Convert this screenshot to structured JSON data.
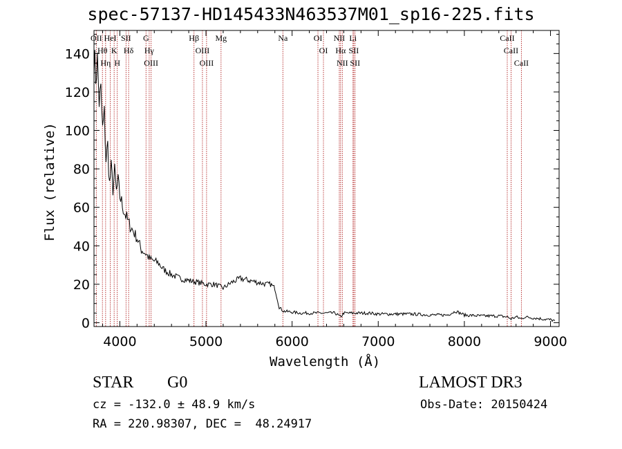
{
  "chart_data": {
    "type": "line",
    "title": "spec-57137-HD145433N463537M01_sp16-225.fits",
    "xlabel": "Wavelength (Å)",
    "ylabel": "Flux (relative)",
    "xlim": [
      3700,
      9100
    ],
    "ylim": [
      -2,
      152
    ],
    "xticks": [
      4000,
      5000,
      6000,
      7000,
      8000,
      9000
    ],
    "yticks": [
      0,
      20,
      40,
      60,
      80,
      100,
      120,
      140
    ],
    "grid": false,
    "series": [
      {
        "x": [
          3700,
          3720,
          3740,
          3760,
          3780,
          3800,
          3820,
          3840,
          3860,
          3880,
          3900,
          3920,
          3940,
          3960,
          3980,
          4000,
          4050,
          4100,
          4150,
          4200,
          4250,
          4300,
          4350,
          4400,
          4450,
          4500,
          4600,
          4700,
          4800,
          4900,
          5000,
          5100,
          5200,
          5300,
          5400,
          5500,
          5600,
          5700,
          5750,
          5800,
          5850,
          5900,
          6000,
          6100,
          6200,
          6300,
          6400,
          6500,
          6563,
          6600,
          6700,
          6800,
          6900,
          7000,
          7200,
          7400,
          7600,
          7800,
          7900,
          8000,
          8200,
          8400,
          8500,
          8542,
          8600,
          8662,
          8700,
          8800,
          8900,
          9000,
          9050
        ],
        "y": [
          140,
          128,
          136,
          115,
          120,
          100,
          108,
          85,
          92,
          72,
          80,
          70,
          78,
          68,
          73,
          66,
          58,
          52,
          48,
          44,
          38,
          36,
          33,
          32,
          31,
          28,
          25,
          23,
          22,
          21,
          20,
          20,
          18,
          21,
          23,
          22,
          21,
          20,
          20,
          18,
          8,
          6,
          5.5,
          5,
          5,
          5,
          5,
          5,
          3,
          5,
          5,
          5,
          5,
          4.5,
          4.5,
          4.5,
          4,
          4,
          6,
          4,
          3.5,
          3.5,
          3,
          2,
          3,
          2,
          3,
          2.5,
          2,
          1.5,
          1
        ]
      }
    ],
    "lines": [
      {
        "x": 3727,
        "labels": [
          "OII"
        ]
      },
      {
        "x": 3798,
        "labels": [
          "Hθ"
        ]
      },
      {
        "x": 3835,
        "labels": [
          "Hη"
        ]
      },
      {
        "x": 3889,
        "labels": [
          "HeI"
        ]
      },
      {
        "x": 3934,
        "labels": [
          "K"
        ]
      },
      {
        "x": 3970,
        "labels": [
          "H"
        ]
      },
      {
        "x": 4072,
        "labels": [
          "SII"
        ]
      },
      {
        "x": 4102,
        "labels": [
          "Hδ"
        ]
      },
      {
        "x": 4304,
        "labels": [
          "G"
        ]
      },
      {
        "x": 4341,
        "labels": [
          "Hγ"
        ]
      },
      {
        "x": 4363,
        "labels": [
          "OIII"
        ]
      },
      {
        "x": 4861,
        "labels": [
          "Hβ"
        ]
      },
      {
        "x": 4959,
        "labels": [
          "OIII"
        ]
      },
      {
        "x": 5007,
        "labels": [
          "OIII"
        ]
      },
      {
        "x": 5175,
        "labels": [
          "Mg"
        ]
      },
      {
        "x": 5893,
        "labels": [
          "Na"
        ]
      },
      {
        "x": 6300,
        "labels": [
          "OI"
        ]
      },
      {
        "x": 6364,
        "labels": [
          "OI"
        ]
      },
      {
        "x": 6548,
        "labels": [
          "NII"
        ]
      },
      {
        "x": 6563,
        "labels": [
          "Hα"
        ]
      },
      {
        "x": 6583,
        "labels": [
          "NII"
        ]
      },
      {
        "x": 6707,
        "labels": [
          "Li"
        ]
      },
      {
        "x": 6716,
        "labels": [
          "SII"
        ]
      },
      {
        "x": 6731,
        "labels": [
          "SII"
        ]
      },
      {
        "x": 8498,
        "labels": [
          "CaII"
        ]
      },
      {
        "x": 8542,
        "labels": [
          "CaII"
        ]
      },
      {
        "x": 8662,
        "labels": [
          "CaII"
        ]
      }
    ]
  },
  "info": {
    "class": "STAR",
    "subclass": "G0",
    "survey": "LAMOST DR3",
    "cz": "cz = -132.0 ± 48.9 km/s",
    "obs_date": "Obs-Date: 20150424",
    "radec": "RA = 220.98307, DEC =  48.24917"
  },
  "colors": {
    "line": "#000000",
    "marker": "#b22222"
  }
}
